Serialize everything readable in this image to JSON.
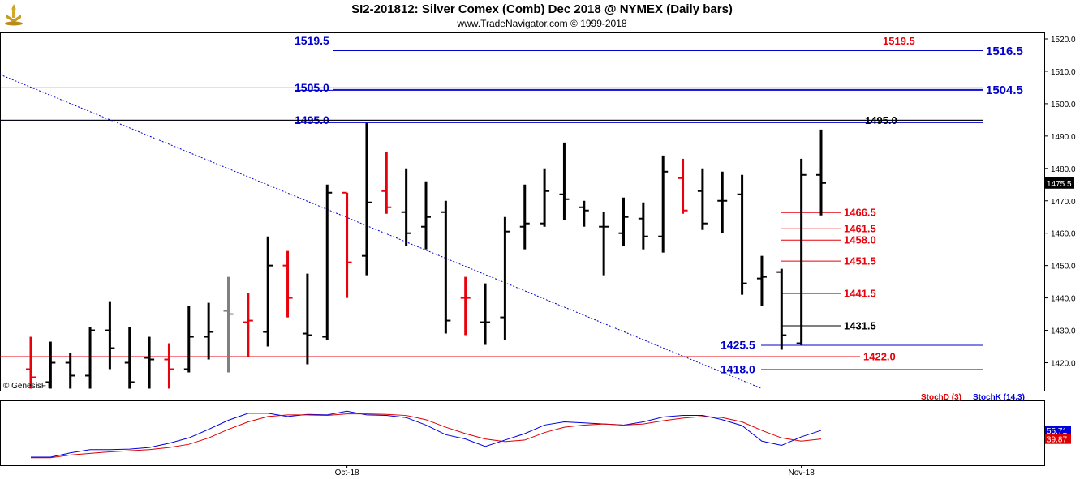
{
  "header": {
    "title": "SI2-201812:  Silver Comex (Comb) Dec 2018 @ NYMEX  (Daily bars)",
    "subtitle": "www.TradeNavigator.com © 1999-2018"
  },
  "watermark": "© GenesisFT",
  "colors": {
    "up_bar": "#000000",
    "down_bar": "#e8000b",
    "neutral_bar": "#808080",
    "blue_level": "#0000cc",
    "red_level": "#e8000b",
    "trendline": "#0000cc",
    "stoch_k": "#0000dd",
    "stoch_d": "#dd0000",
    "price_tag_bg": "#000000"
  },
  "chart_data": [
    {
      "type": "ohlc",
      "title": "SI2-201812:  Silver Comex (Comb) Dec 2018 @ NYMEX  (Daily bars)",
      "y_ticks": [
        "1520.0",
        "1510.0",
        "1500.0",
        "1490.0",
        "1480.0",
        "1470.0",
        "1460.0",
        "1450.0",
        "1440.0",
        "1430.0",
        "1420.0"
      ],
      "ylim": [
        1411,
        1523
      ],
      "x_labels": [
        {
          "label": "Oct-18",
          "index": 16
        },
        {
          "label": "Nov-18",
          "index": 39
        }
      ],
      "last_price": "1475.5",
      "bars": [
        {
          "o": 1418,
          "h": 1428,
          "l": 1412,
          "c": 1415.5,
          "color": "down"
        },
        {
          "o": 1414,
          "h": 1426.5,
          "l": 1412,
          "c": 1420,
          "color": "up"
        },
        {
          "o": 1420,
          "h": 1423,
          "l": 1412,
          "c": 1416,
          "color": "up"
        },
        {
          "o": 1416,
          "h": 1431,
          "l": 1412,
          "c": 1430,
          "color": "up"
        },
        {
          "o": 1430,
          "h": 1439,
          "l": 1418,
          "c": 1424.5,
          "color": "up"
        },
        {
          "o": 1420,
          "h": 1431,
          "l": 1412,
          "c": 1414,
          "color": "up"
        },
        {
          "o": 1421.5,
          "h": 1428,
          "l": 1412,
          "c": 1421,
          "color": "up"
        },
        {
          "o": 1421,
          "h": 1426,
          "l": 1412,
          "c": 1418,
          "color": "down"
        },
        {
          "o": 1418,
          "h": 1437.5,
          "l": 1417,
          "c": 1428,
          "color": "up"
        },
        {
          "o": 1428,
          "h": 1438.5,
          "l": 1421,
          "c": 1429.5,
          "color": "up"
        },
        {
          "o": 1436,
          "h": 1446.5,
          "l": 1417,
          "c": 1435,
          "color": "neutral"
        },
        {
          "o": 1432.5,
          "h": 1441.5,
          "l": 1422,
          "c": 1433,
          "color": "down"
        },
        {
          "o": 1429.5,
          "h": 1459,
          "l": 1425,
          "c": 1450,
          "color": "up"
        },
        {
          "o": 1450,
          "h": 1454.5,
          "l": 1434,
          "c": 1440,
          "color": "down"
        },
        {
          "o": 1429,
          "h": 1447.5,
          "l": 1419.5,
          "c": 1428.5,
          "color": "up"
        },
        {
          "o": 1428,
          "h": 1475,
          "l": 1427,
          "c": 1472.5,
          "color": "up"
        },
        {
          "o": 1472.5,
          "h": 1472,
          "l": 1440,
          "c": 1451,
          "color": "down"
        },
        {
          "o": 1453,
          "h": 1494,
          "l": 1447,
          "c": 1469.5,
          "color": "up"
        },
        {
          "o": 1473,
          "h": 1485,
          "l": 1466,
          "c": 1468,
          "color": "down"
        },
        {
          "o": 1466.5,
          "h": 1480,
          "l": 1456,
          "c": 1460,
          "color": "up"
        },
        {
          "o": 1462,
          "h": 1476,
          "l": 1455,
          "c": 1465,
          "color": "up"
        },
        {
          "o": 1466.5,
          "h": 1470,
          "l": 1429,
          "c": 1433,
          "color": "up"
        },
        {
          "o": 1440,
          "h": 1446.5,
          "l": 1428.5,
          "c": 1440,
          "color": "down"
        },
        {
          "o": 1432.5,
          "h": 1444.5,
          "l": 1425.5,
          "c": 1432.5,
          "color": "up"
        },
        {
          "o": 1434,
          "h": 1465,
          "l": 1427,
          "c": 1460.5,
          "color": "up"
        },
        {
          "o": 1462,
          "h": 1475,
          "l": 1455,
          "c": 1463,
          "color": "up"
        },
        {
          "o": 1463,
          "h": 1480,
          "l": 1462,
          "c": 1473,
          "color": "up"
        },
        {
          "o": 1472,
          "h": 1488,
          "l": 1464,
          "c": 1470.5,
          "color": "up"
        },
        {
          "o": 1468,
          "h": 1470,
          "l": 1462,
          "c": 1467,
          "color": "up"
        },
        {
          "o": 1462,
          "h": 1466.5,
          "l": 1447,
          "c": 1462,
          "color": "up"
        },
        {
          "o": 1460,
          "h": 1471,
          "l": 1456,
          "c": 1465,
          "color": "up"
        },
        {
          "o": 1464.5,
          "h": 1469.5,
          "l": 1455,
          "c": 1459,
          "color": "up"
        },
        {
          "o": 1459,
          "h": 1484,
          "l": 1454,
          "c": 1479,
          "color": "up"
        },
        {
          "o": 1477,
          "h": 1483,
          "l": 1466,
          "c": 1467,
          "color": "down"
        },
        {
          "o": 1473,
          "h": 1480,
          "l": 1461,
          "c": 1463,
          "color": "up"
        },
        {
          "o": 1470,
          "h": 1479,
          "l": 1460,
          "c": 1470,
          "color": "up"
        },
        {
          "o": 1472,
          "h": 1478,
          "l": 1441,
          "c": 1444.5,
          "color": "up"
        },
        {
          "o": 1446,
          "h": 1453,
          "l": 1437.5,
          "c": 1446.5,
          "color": "up"
        },
        {
          "o": 1448,
          "h": 1449,
          "l": 1424,
          "c": 1428.5,
          "color": "up"
        },
        {
          "o": 1426,
          "h": 1483,
          "l": 1425.5,
          "c": 1478,
          "color": "up"
        },
        {
          "o": 1478,
          "h": 1492,
          "l": 1465.5,
          "c": 1475.5,
          "color": "up"
        }
      ],
      "levels": [
        {
          "value": 1519.5,
          "label": "1519.5",
          "color": "red",
          "label_pos": "right"
        },
        {
          "value": 1519.5,
          "label": "1519.5",
          "color": "blue",
          "label_pos": "left"
        },
        {
          "value": 1516.5,
          "label": "1516.5",
          "color": "blue",
          "label_pos": "far-right"
        },
        {
          "value": 1505.0,
          "label": "1505.0",
          "color": "blue",
          "label_pos": "left"
        },
        {
          "value": 1504.5,
          "label": "1504.5",
          "color": "blue",
          "label_pos": "far-right"
        },
        {
          "value": 1495.0,
          "label": "1495.0",
          "color": "blue",
          "label_pos": "left"
        },
        {
          "value": 1495.0,
          "label": "1495.0",
          "color": "black",
          "label_pos": "right"
        },
        {
          "value": 1466.5,
          "label": "1466.5",
          "color": "red",
          "label_pos": "right"
        },
        {
          "value": 1461.5,
          "label": "1461.5",
          "color": "red",
          "label_pos": "right"
        },
        {
          "value": 1458.0,
          "label": "1458.0",
          "color": "red",
          "label_pos": "right"
        },
        {
          "value": 1451.5,
          "label": "1451.5",
          "color": "red",
          "label_pos": "right"
        },
        {
          "value": 1441.5,
          "label": "1441.5",
          "color": "red",
          "label_pos": "right"
        },
        {
          "value": 1431.5,
          "label": "1431.5",
          "color": "black",
          "label_pos": "right"
        },
        {
          "value": 1425.5,
          "label": "1425.5",
          "color": "blue",
          "label_pos": "mid"
        },
        {
          "value": 1422.0,
          "label": "1422.0",
          "color": "red",
          "label_pos": "right"
        },
        {
          "value": 1418.0,
          "label": "1418.0",
          "color": "blue",
          "label_pos": "mid"
        }
      ],
      "trendline": {
        "start": {
          "index": 0,
          "value": 1509
        },
        "end": {
          "index": 37,
          "value": 1412
        }
      }
    },
    {
      "type": "line",
      "legend": [
        {
          "name": "StochD (3)",
          "color": "red"
        },
        {
          "name": "StochK (14,3)",
          "color": "blue"
        }
      ],
      "ylim": [
        0,
        100
      ],
      "last_values": {
        "k": "55.71",
        "d": "39.87"
      },
      "series": [
        {
          "name": "StochK (14,3)",
          "values": [
            6,
            6,
            14,
            20,
            20,
            21,
            24,
            32,
            42,
            58,
            75,
            88,
            88,
            82,
            86,
            85,
            92,
            85,
            84,
            80,
            66,
            48,
            40,
            26,
            38,
            50,
            66,
            72,
            70,
            68,
            66,
            72,
            81,
            84,
            84,
            76,
            65,
            36,
            28,
            44,
            56
          ]
        },
        {
          "name": "StochD (3)",
          "values": [
            5,
            5,
            10,
            13,
            16,
            18,
            20,
            24,
            30,
            42,
            58,
            72,
            82,
            85,
            85,
            84,
            87,
            87,
            86,
            84,
            76,
            62,
            50,
            40,
            35,
            38,
            52,
            62,
            66,
            68,
            66,
            68,
            74,
            79,
            82,
            80,
            72,
            56,
            42,
            36,
            40
          ]
        }
      ]
    }
  ]
}
